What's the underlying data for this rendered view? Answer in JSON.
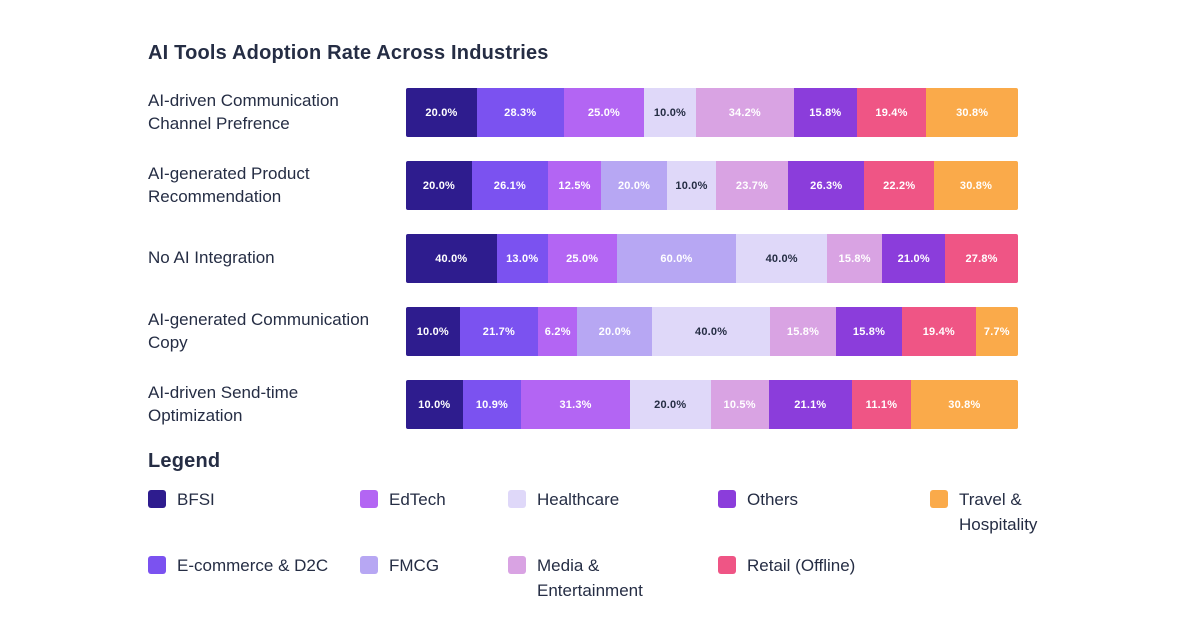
{
  "page": {
    "background": "#FFFFFF",
    "text_color": "#252D44"
  },
  "header": {
    "title": "AI Tools Adoption Rate Across Industries"
  },
  "legend": {
    "title": "Legend",
    "items": [
      {
        "label": "BFSI",
        "series": "BFSI"
      },
      {
        "label": "EdTech",
        "series": "EdTech"
      },
      {
        "label": "Healthcare",
        "series": "Healthcare"
      },
      {
        "label": "Others",
        "series": "Others"
      },
      {
        "label": "Travel & Hospitality",
        "series": "Travel & Hospitality"
      },
      {
        "label": "E-commerce & D2C",
        "series": "E-commerce & D2C"
      },
      {
        "label": "FMCG",
        "series": "FMCG"
      },
      {
        "label": "Media & Entertainment",
        "series": "Media & Entertainment"
      },
      {
        "label": "Retail (Offline)",
        "series": "Retail (Offline)"
      }
    ]
  },
  "chart_data": {
    "type": "bar",
    "variant": "stacked-horizontal-normalized",
    "title": "AI Tools Adoption Rate Across Industries",
    "xlabel": "",
    "ylabel": "",
    "value_suffix": "%",
    "grid": false,
    "axes_visible": false,
    "legend_position": "bottom",
    "categories": [
      "AI-driven Communication Channel Prefrence",
      "AI-generated Product Recommendation",
      "No AI Integration",
      "AI-generated Communication Copy",
      "AI-driven Send-time Optimization"
    ],
    "series": [
      {
        "name": "BFSI",
        "color": "#2E1C8E",
        "label_color": "#FFFFFF",
        "values": [
          20.0,
          20.0,
          40.0,
          10.0,
          10.0
        ]
      },
      {
        "name": "E-commerce & D2C",
        "color": "#7B52F0",
        "label_color": "#FFFFFF",
        "values": [
          28.3,
          26.1,
          13.0,
          21.7,
          10.9
        ]
      },
      {
        "name": "EdTech",
        "color": "#B365F3",
        "label_color": "#FFFFFF",
        "values": [
          25.0,
          12.5,
          25.0,
          6.2,
          31.3
        ]
      },
      {
        "name": "FMCG",
        "color": "#B7A7F3",
        "label_color": "#FFFFFF",
        "values": [
          null,
          20.0,
          60.0,
          20.0,
          null
        ]
      },
      {
        "name": "Healthcare",
        "color": "#DFD8F9",
        "label_color": "#252D44",
        "values": [
          10.0,
          10.0,
          40.0,
          40.0,
          20.0
        ]
      },
      {
        "name": "Media & Entertainment",
        "color": "#D9A3E3",
        "label_color": "#FFFFFF",
        "values": [
          34.2,
          23.7,
          15.8,
          15.8,
          10.5
        ]
      },
      {
        "name": "Others",
        "color": "#8B3DDB",
        "label_color": "#FFFFFF",
        "values": [
          15.8,
          26.3,
          21.0,
          15.8,
          21.1
        ]
      },
      {
        "name": "Retail (Offline)",
        "color": "#EF5585",
        "label_color": "#FFFFFF",
        "values": [
          19.4,
          22.2,
          27.8,
          19.4,
          11.1
        ]
      },
      {
        "name": "Travel & Hospitality",
        "color": "#FAAA4A",
        "label_color": "#FFFFFF",
        "values": [
          30.8,
          30.8,
          null,
          7.7,
          30.8
        ]
      }
    ]
  }
}
